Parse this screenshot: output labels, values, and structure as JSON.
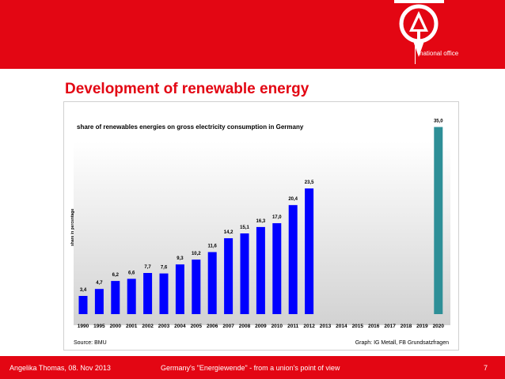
{
  "header": {
    "office_label": "national office",
    "logo_icon": "ig-metall-logo-icon"
  },
  "slide": {
    "title": "Development of renewable energy"
  },
  "chart_data": {
    "type": "bar",
    "title": "share of renewables energies  on gross electricity consumption in Germany",
    "ylabel": "share   in percentage",
    "xlabel": "",
    "ylim": [
      0,
      37
    ],
    "grid": false,
    "categories": [
      "1990",
      "1995",
      "2000",
      "2001",
      "2002",
      "2003",
      "2004",
      "2005",
      "2006",
      "2007",
      "2008",
      "2009",
      "2010",
      "2011",
      "2012",
      "2013",
      "2014",
      "2015",
      "2016",
      "2017",
      "2018",
      "2019",
      "2020"
    ],
    "values": [
      3.4,
      4.7,
      6.2,
      6.6,
      7.7,
      7.6,
      9.3,
      10.2,
      11.6,
      14.2,
      15.1,
      16.3,
      17.0,
      20.4,
      23.5,
      null,
      null,
      null,
      null,
      null,
      null,
      null,
      35.0
    ],
    "value_labels": [
      "3,4",
      "4,7",
      "6,2",
      "6,6",
      "7,7",
      "7,6",
      "9,3",
      "10,2",
      "11,6",
      "14,2",
      "15,1",
      "16,3",
      "17,0",
      "20,4",
      "23,5",
      "",
      "",
      "",
      "",
      "",
      "",
      "",
      "35,0"
    ],
    "colors": {
      "actual": "#0000ff",
      "target": "#2e8f97",
      "target_index": 22
    },
    "source": "Source: BMU",
    "credit": "Graph: IG Metall, FB Grundsatzfragen"
  },
  "footer": {
    "author_date": "Angelika Thomas, 08. Nov 2013",
    "topic": "Germany's \"Energiewende\" - from a union's point of view",
    "page_number": "7"
  }
}
